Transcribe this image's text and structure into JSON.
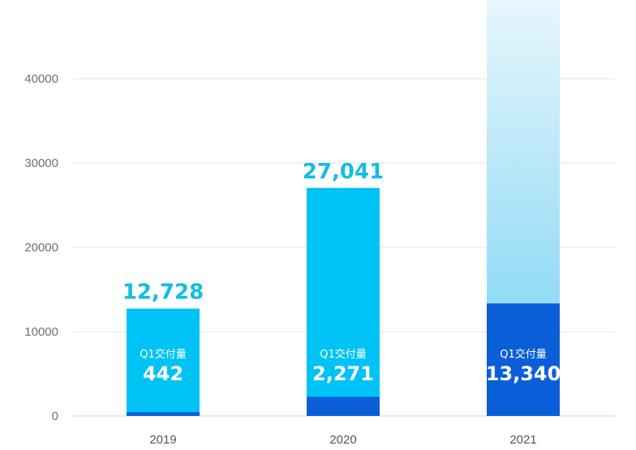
{
  "chart_data": {
    "type": "bar",
    "stacked_overlay": true,
    "categories": [
      "2019",
      "2020",
      "2021"
    ],
    "ylim": [
      0,
      50000
    ],
    "yticks": [
      0,
      10000,
      20000,
      30000,
      40000
    ],
    "ytick_labels": [
      "0",
      "10000",
      "20000",
      "30000",
      "40000"
    ],
    "grid": true,
    "series": [
      {
        "name": "",
        "values": [
          12728,
          27041,
          null
        ],
        "data_labels": [
          "12,728",
          "27,041",
          ""
        ],
        "color": "#00C3F5"
      },
      {
        "name": "Q1交付量",
        "values": [
          442,
          2271,
          13340
        ],
        "data_labels": [
          "442",
          "2,271",
          "13,340"
        ],
        "color": "#0A5FD8"
      }
    ],
    "annotations": [
      "Q1交付量",
      "Q1交付量",
      "Q1交付量"
    ],
    "colors": {
      "total_bar": "#00C3F5",
      "q1_bar": "#0A5FD8",
      "projected_top": "#E6F6FC",
      "projected_bottom": "#74D1F3",
      "total_label": "#12BDE3",
      "grid": "#E3E3E3"
    }
  }
}
